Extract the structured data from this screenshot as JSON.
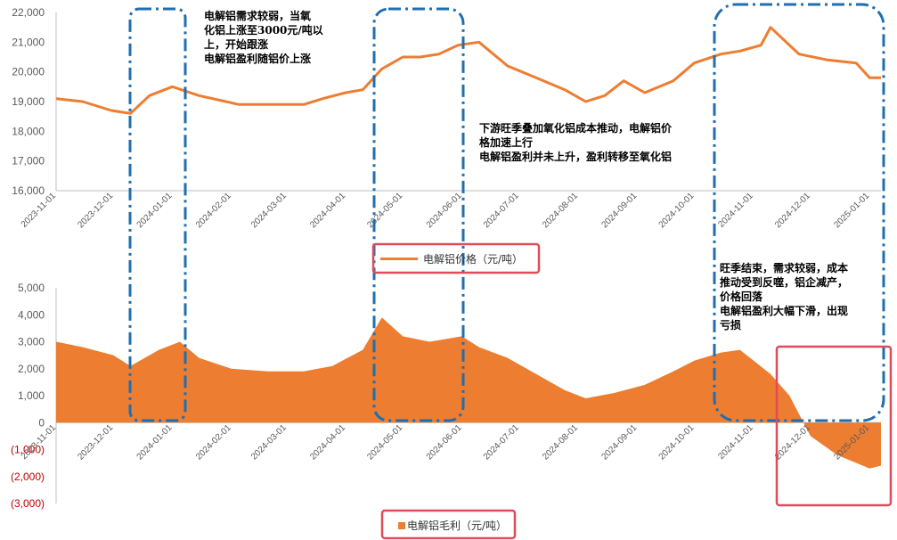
{
  "colors": {
    "series": "#ed7d31",
    "dashbox": "#1f6fb0",
    "redbox": "#e04b5a",
    "negative_tick": "#c00000"
  },
  "legends": {
    "price": "电解铝价格（元/吨）",
    "profit": "电解铝毛利（元/吨）"
  },
  "annotations": {
    "a1": "电解铝需求较弱，当氧\n化铝上涨至3000元/吨以\n上，开始跟涨\n电解铝盈利随铝价上涨",
    "a2": "下游旺季叠加氧化铝成本推动，电解铝价\n格加速上行\n电解铝盈利并未上升，盈利转移至氧化铝",
    "a3": "旺季结束，需求较弱，成本\n推动受到反噬，铝企减产，\n价格回落\n电解铝盈利大幅下滑，出现\n亏损"
  },
  "chart_data": [
    {
      "type": "line",
      "name": "电解铝价格（元/吨）",
      "ylim": [
        16000,
        22000
      ],
      "y_ticks": [
        "16,000",
        "17,000",
        "18,000",
        "19,000",
        "20,000",
        "21,000",
        "22,000"
      ],
      "x_ticks": [
        "2023-11-01",
        "2023-12-01",
        "2024-01-01",
        "2024-02-01",
        "2024-03-01",
        "2024-04-01",
        "2024-05-01",
        "2024-06-01",
        "2024-07-01",
        "2024-08-01",
        "2024-09-01",
        "2024-10-01",
        "2024-11-01",
        "2024-12-01",
        "2025-01-01"
      ],
      "x": [
        "2023-11-01",
        "2023-11-15",
        "2023-11-30",
        "2023-12-10",
        "2023-12-20",
        "2024-01-01",
        "2024-01-15",
        "2024-02-05",
        "2024-02-20",
        "2024-03-10",
        "2024-03-20",
        "2024-04-01",
        "2024-04-10",
        "2024-04-20",
        "2024-05-01",
        "2024-05-10",
        "2024-05-20",
        "2024-05-30",
        "2024-06-10",
        "2024-06-25",
        "2024-07-10",
        "2024-07-25",
        "2024-08-05",
        "2024-08-15",
        "2024-08-25",
        "2024-09-05",
        "2024-09-20",
        "2024-10-01",
        "2024-10-15",
        "2024-10-25",
        "2024-11-05",
        "2024-11-10",
        "2024-11-25",
        "2024-12-10",
        "2024-12-25",
        "2025-01-01",
        "2025-01-07"
      ],
      "values": [
        19100,
        19000,
        18700,
        18600,
        19200,
        19500,
        19200,
        18900,
        18900,
        18900,
        19100,
        19300,
        19400,
        20100,
        20500,
        20500,
        20600,
        20900,
        21000,
        20200,
        19800,
        19400,
        19000,
        19200,
        19700,
        19300,
        19700,
        20300,
        20600,
        20700,
        20900,
        21500,
        20600,
        20400,
        20300,
        19800,
        19800
      ]
    },
    {
      "type": "area",
      "name": "电解铝毛利（元/吨）",
      "ylim": [
        -3000,
        5000
      ],
      "y_ticks": [
        "(3,000)",
        "(2,000)",
        "(1,000)",
        "0",
        "1,000",
        "2,000",
        "3,000",
        "4,000",
        "5,000"
      ],
      "x_ticks": [
        "2023-11-01",
        "2023-12-01",
        "2024-01-01",
        "2024-02-01",
        "2024-03-01",
        "2024-04-01",
        "2024-05-01",
        "2024-06-01",
        "2024-07-01",
        "2024-08-01",
        "2024-09-01",
        "2024-10-01",
        "2024-11-01",
        "2024-12-01",
        "2025-01-01"
      ],
      "x": [
        "2023-11-01",
        "2023-11-15",
        "2023-12-01",
        "2023-12-10",
        "2023-12-25",
        "2024-01-05",
        "2024-01-15",
        "2024-02-01",
        "2024-02-20",
        "2024-03-10",
        "2024-03-25",
        "2024-04-10",
        "2024-04-20",
        "2024-05-01",
        "2024-05-15",
        "2024-06-01",
        "2024-06-10",
        "2024-06-25",
        "2024-07-10",
        "2024-07-25",
        "2024-08-05",
        "2024-08-20",
        "2024-09-05",
        "2024-09-20",
        "2024-10-01",
        "2024-10-15",
        "2024-10-25",
        "2024-11-10",
        "2024-11-20",
        "2024-12-01",
        "2024-12-15",
        "2025-01-01",
        "2025-01-07"
      ],
      "values": [
        3000,
        2800,
        2500,
        2100,
        2700,
        3000,
        2400,
        2000,
        1900,
        1900,
        2100,
        2700,
        3900,
        3200,
        3000,
        3200,
        2800,
        2400,
        1800,
        1200,
        900,
        1100,
        1400,
        1900,
        2300,
        2600,
        2700,
        1800,
        1000,
        -500,
        -1200,
        -1700,
        -1600
      ]
    }
  ]
}
